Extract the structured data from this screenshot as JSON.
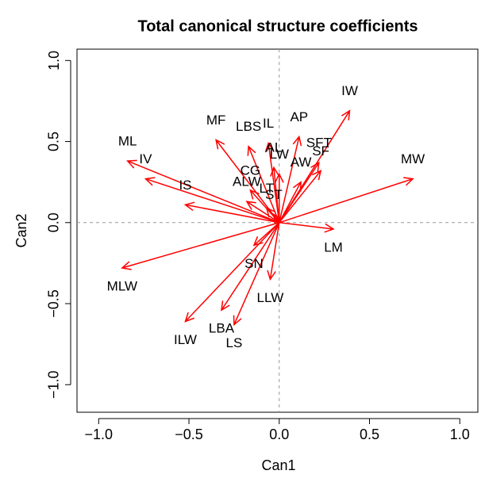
{
  "chart_data": {
    "type": "arrows",
    "title": "Total canonical structure coefficients",
    "x_label": "Can1",
    "y_label": "Can2",
    "labels": [
      "IW",
      "MW",
      "LM",
      "MLW",
      "ML",
      "IV",
      "IS",
      "ILW",
      "LBA",
      "LS",
      "SN",
      "LLW",
      "MF",
      "LBS",
      "IL",
      "AP",
      "AL",
      "LW",
      "SFT",
      "SF",
      "AW",
      "CG",
      "ALW",
      "LT",
      "ST"
    ],
    "x": [
      0.39,
      0.74,
      0.3,
      -0.87,
      -0.84,
      -0.74,
      -0.52,
      -0.52,
      -0.32,
      -0.25,
      -0.14,
      -0.05,
      -0.35,
      -0.17,
      -0.06,
      0.11,
      -0.03,
      0.0,
      0.22,
      0.23,
      0.12,
      -0.16,
      -0.18,
      -0.07,
      -0.03
    ],
    "values": [
      0.69,
      0.27,
      -0.04,
      -0.28,
      0.38,
      0.27,
      0.11,
      -0.61,
      -0.54,
      -0.63,
      -0.14,
      -0.35,
      0.51,
      0.47,
      0.49,
      0.53,
      0.34,
      0.3,
      0.37,
      0.32,
      0.25,
      0.2,
      0.13,
      0.09,
      0.05
    ],
    "color": "#ff0000",
    "xlim": [
      -1.12,
      1.1
    ],
    "ylim": [
      -1.17,
      1.07
    ],
    "xticks": [
      {
        "value": -1,
        "label": "−1.0"
      },
      {
        "value": -0.5,
        "label": "−0.5"
      },
      {
        "value": 0,
        "label": "0.0"
      },
      {
        "value": 0.5,
        "label": "0.5"
      },
      {
        "value": 1,
        "label": "1.0"
      }
    ],
    "yticks": [
      {
        "value": -1,
        "label": "−1.0"
      },
      {
        "value": -0.5,
        "label": "−0.5"
      },
      {
        "value": 0,
        "label": "0.0"
      },
      {
        "value": 0.5,
        "label": "0.5"
      },
      {
        "value": 1,
        "label": "1.0"
      }
    ]
  }
}
